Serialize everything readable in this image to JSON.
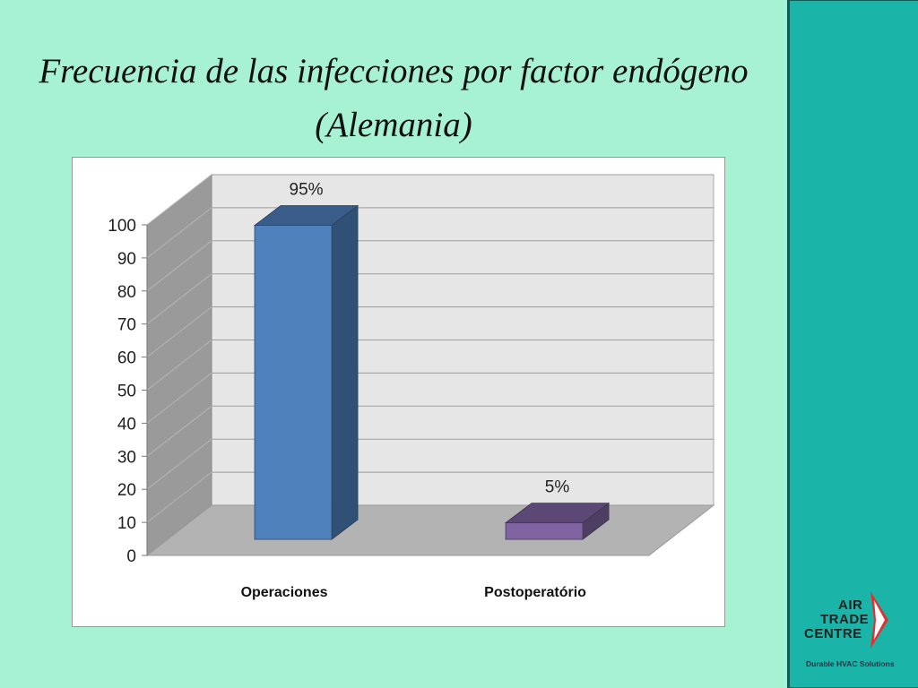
{
  "slide": {
    "title_line1": "Frecuencia de las infecciones por factor endógeno",
    "title_line2": "(Alemania)"
  },
  "logo": {
    "word1": "AIR",
    "word2": "TRADE",
    "word3": "CENTRE",
    "tagline": "Durable HVAC Solutions",
    "arrow_color": "#e03030"
  },
  "colors": {
    "background": "#a8f2d4",
    "panel": "#1ab5a8"
  },
  "chart_data": {
    "type": "bar",
    "style": "3d-column",
    "categories": [
      "Operaciones",
      "Postoperatório"
    ],
    "values": [
      95,
      5
    ],
    "data_labels": [
      "95%",
      "5%"
    ],
    "colors": [
      "#4f81bd",
      "#8064a2"
    ],
    "ylim": [
      0,
      100
    ],
    "yticks": [
      "0",
      "10",
      "20",
      "30",
      "40",
      "50",
      "60",
      "70",
      "80",
      "90",
      "100"
    ],
    "grid": true,
    "legend": "none"
  }
}
